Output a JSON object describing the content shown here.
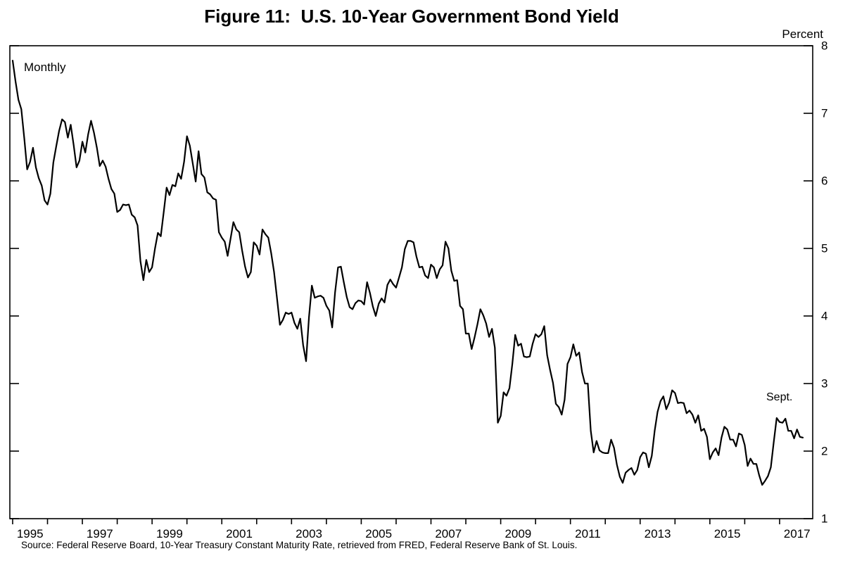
{
  "source_note": "Source: Federal Reserve Board, 10-Year Treasury Constant Maturity Rate, retrieved from FRED, Federal Reserve Bank of St. Louis.",
  "chart_data": {
    "type": "line",
    "title": "Figure 11:  U.S. 10-Year Government Bond Yield",
    "ylabel": "Percent",
    "frequency_label": "Monthly",
    "end_label": "Sept.",
    "ylim": [
      1,
      8
    ],
    "y_ticks": [
      1,
      2,
      3,
      4,
      5,
      6,
      7,
      8
    ],
    "x_tick_labels": [
      "1995",
      "1997",
      "1999",
      "2001",
      "2003",
      "2005",
      "2007",
      "2009",
      "2011",
      "2013",
      "2015",
      "2017"
    ],
    "x_start": "1995-01",
    "x_end": "2017-09",
    "grid": false,
    "legend": "none",
    "line_color": "#000000",
    "series": [
      {
        "name": "10-Year Treasury Constant Maturity Rate",
        "values": [
          7.78,
          7.47,
          7.2,
          7.06,
          6.63,
          6.17,
          6.28,
          6.49,
          6.2,
          6.04,
          5.93,
          5.71,
          5.65,
          5.81,
          6.27,
          6.51,
          6.74,
          6.91,
          6.87,
          6.64,
          6.83,
          6.53,
          6.2,
          6.3,
          6.58,
          6.42,
          6.69,
          6.89,
          6.71,
          6.49,
          6.22,
          6.3,
          6.21,
          6.03,
          5.88,
          5.81,
          5.54,
          5.57,
          5.65,
          5.64,
          5.65,
          5.5,
          5.46,
          5.34,
          4.81,
          4.53,
          4.83,
          4.65,
          4.72,
          5.0,
          5.23,
          5.18,
          5.54,
          5.9,
          5.79,
          5.94,
          5.92,
          6.11,
          6.03,
          6.28,
          6.66,
          6.52,
          6.26,
          5.99,
          6.44,
          6.1,
          6.05,
          5.83,
          5.8,
          5.74,
          5.72,
          5.24,
          5.16,
          5.1,
          4.89,
          5.14,
          5.39,
          5.28,
          5.24,
          4.97,
          4.73,
          4.57,
          4.65,
          5.09,
          5.04,
          4.91,
          5.28,
          5.21,
          5.16,
          4.93,
          4.65,
          4.26,
          3.87,
          3.94,
          4.05,
          4.03,
          4.05,
          3.9,
          3.81,
          3.96,
          3.57,
          3.33,
          3.98,
          4.45,
          4.27,
          4.29,
          4.3,
          4.27,
          4.15,
          4.08,
          3.83,
          4.35,
          4.72,
          4.73,
          4.5,
          4.28,
          4.13,
          4.1,
          4.19,
          4.23,
          4.22,
          4.17,
          4.5,
          4.34,
          4.14,
          4.0,
          4.18,
          4.26,
          4.2,
          4.46,
          4.54,
          4.47,
          4.42,
          4.57,
          4.72,
          4.99,
          5.11,
          5.11,
          5.09,
          4.88,
          4.72,
          4.73,
          4.6,
          4.56,
          4.76,
          4.72,
          4.56,
          4.69,
          4.75,
          5.1,
          5.0,
          4.67,
          4.52,
          4.53,
          4.15,
          4.1,
          3.74,
          3.74,
          3.51,
          3.68,
          3.88,
          4.1,
          4.01,
          3.89,
          3.69,
          3.81,
          3.53,
          2.42,
          2.52,
          2.87,
          2.82,
          2.93,
          3.29,
          3.72,
          3.56,
          3.59,
          3.4,
          3.39,
          3.4,
          3.59,
          3.73,
          3.69,
          3.73,
          3.85,
          3.42,
          3.2,
          3.01,
          2.7,
          2.65,
          2.54,
          2.76,
          3.29,
          3.39,
          3.58,
          3.41,
          3.46,
          3.17,
          3.0,
          3.0,
          2.3,
          1.98,
          2.15,
          2.01,
          1.98,
          1.97,
          1.97,
          2.17,
          2.05,
          1.8,
          1.62,
          1.53,
          1.68,
          1.72,
          1.75,
          1.65,
          1.72,
          1.91,
          1.98,
          1.96,
          1.76,
          1.93,
          2.3,
          2.58,
          2.74,
          2.81,
          2.62,
          2.72,
          2.9,
          2.86,
          2.71,
          2.72,
          2.71,
          2.56,
          2.6,
          2.54,
          2.42,
          2.53,
          2.3,
          2.33,
          2.21,
          1.88,
          1.98,
          2.04,
          1.94,
          2.2,
          2.36,
          2.32,
          2.17,
          2.17,
          2.07,
          2.26,
          2.24,
          2.09,
          1.78,
          1.89,
          1.81,
          1.81,
          1.64,
          1.5,
          1.56,
          1.63,
          1.76,
          2.14,
          2.49,
          2.43,
          2.42,
          2.48,
          2.3,
          2.3,
          2.19,
          2.32,
          2.21,
          2.2
        ]
      }
    ]
  }
}
